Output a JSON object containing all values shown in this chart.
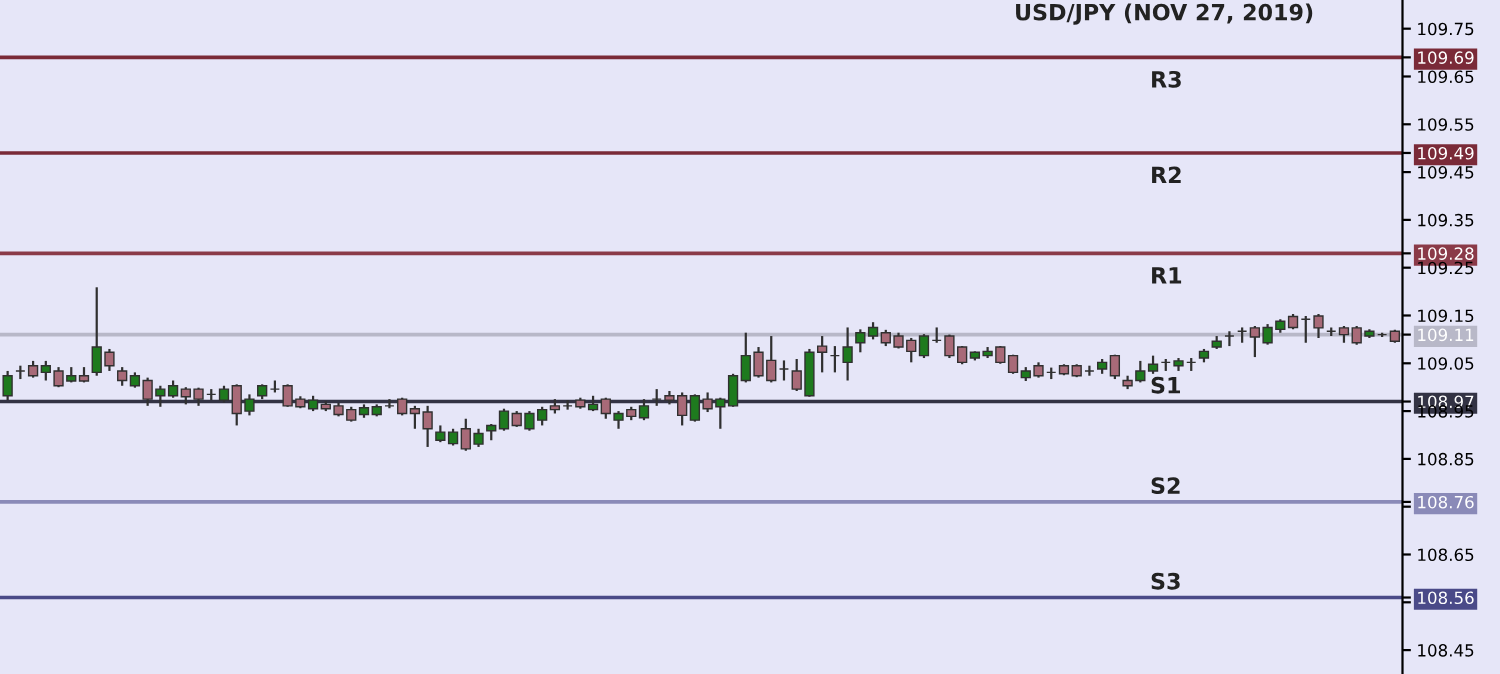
{
  "chart_data": {
    "type": "candlestick",
    "title": "USD/JPY (NOV 27, 2019)",
    "categories": [
      null,
      null,
      null,
      null,
      null,
      null,
      null,
      null,
      null,
      null,
      null,
      null,
      null,
      null,
      null,
      null,
      null,
      null,
      null,
      null,
      null,
      null,
      null,
      null,
      null,
      null,
      null,
      null,
      null,
      null,
      null,
      null,
      null,
      null,
      null,
      null,
      null,
      null,
      null,
      null,
      null,
      null,
      null,
      null,
      null,
      null,
      null,
      null,
      null,
      null,
      null,
      null,
      null,
      null,
      null,
      null,
      null,
      null,
      null,
      null,
      null,
      null,
      null,
      null,
      null,
      null,
      null,
      null,
      null,
      null,
      null,
      null,
      null,
      null,
      null,
      null,
      null,
      null,
      null,
      null,
      null,
      null,
      null,
      null,
      null,
      null,
      null,
      null,
      null,
      null,
      null,
      null,
      null,
      null,
      null,
      null,
      null,
      null,
      null,
      null,
      null,
      null,
      null,
      null,
      null,
      null,
      null,
      null,
      null,
      null
    ],
    "ohlc": [
      [
        108.982,
        109.034,
        108.973,
        109.024
      ],
      [
        109.034,
        109.045,
        109.017,
        109.034
      ],
      [
        109.045,
        109.055,
        109.02,
        109.024
      ],
      [
        109.031,
        109.055,
        109.014,
        109.045
      ],
      [
        109.034,
        109.042,
        109.0,
        109.003
      ],
      [
        109.013,
        109.042,
        109.01,
        109.024
      ],
      [
        109.024,
        109.042,
        109.01,
        109.013
      ],
      [
        109.031,
        109.209,
        109.024,
        109.084
      ],
      [
        109.073,
        109.08,
        109.034,
        109.045
      ],
      [
        109.034,
        109.042,
        109.003,
        109.014
      ],
      [
        109.003,
        109.031,
        108.999,
        109.024
      ],
      [
        109.014,
        109.02,
        108.961,
        108.975
      ],
      [
        108.982,
        109.003,
        108.959,
        108.996
      ],
      [
        108.982,
        109.014,
        108.978,
        109.003
      ],
      [
        108.996,
        109.0,
        108.964,
        108.98
      ],
      [
        108.996,
        108.999,
        108.961,
        108.975
      ],
      [
        108.985,
        108.996,
        108.973,
        108.985
      ],
      [
        108.973,
        109.003,
        108.968,
        108.996
      ],
      [
        109.003,
        109.006,
        108.92,
        108.945
      ],
      [
        108.95,
        108.985,
        108.941,
        108.975
      ],
      [
        108.982,
        109.006,
        108.975,
        109.003
      ],
      [
        108.996,
        109.014,
        108.989,
        108.996
      ],
      [
        109.003,
        109.006,
        108.959,
        108.961
      ],
      [
        108.975,
        108.981,
        108.956,
        108.959
      ],
      [
        108.955,
        108.982,
        108.95,
        108.973
      ],
      [
        108.964,
        108.971,
        108.95,
        108.955
      ],
      [
        108.961,
        108.967,
        108.939,
        108.943
      ],
      [
        108.953,
        108.959,
        108.928,
        108.931
      ],
      [
        108.943,
        108.964,
        108.936,
        108.957
      ],
      [
        108.943,
        108.964,
        108.939,
        108.959
      ],
      [
        108.961,
        108.975,
        108.956,
        108.961
      ],
      [
        108.975,
        108.978,
        108.941,
        108.945
      ],
      [
        108.955,
        108.961,
        108.913,
        108.945
      ],
      [
        108.948,
        108.961,
        108.875,
        108.913
      ],
      [
        108.889,
        108.92,
        108.885,
        108.906
      ],
      [
        108.882,
        108.913,
        108.878,
        108.906
      ],
      [
        108.913,
        108.934,
        108.867,
        108.871
      ],
      [
        108.881,
        108.913,
        108.875,
        108.903
      ],
      [
        108.909,
        108.923,
        108.889,
        108.92
      ],
      [
        108.913,
        108.955,
        108.909,
        108.95
      ],
      [
        108.945,
        108.95,
        108.917,
        108.92
      ],
      [
        108.913,
        108.95,
        108.909,
        108.945
      ],
      [
        108.931,
        108.959,
        108.92,
        108.953
      ],
      [
        108.961,
        108.975,
        108.945,
        108.953
      ],
      [
        108.961,
        108.973,
        108.953,
        108.961
      ],
      [
        108.973,
        108.978,
        108.955,
        108.959
      ],
      [
        108.953,
        108.982,
        108.95,
        108.964
      ],
      [
        108.975,
        108.978,
        108.934,
        108.945
      ],
      [
        108.931,
        108.95,
        108.913,
        108.945
      ],
      [
        108.953,
        108.959,
        108.931,
        108.939
      ],
      [
        108.936,
        108.975,
        108.931,
        108.961
      ],
      [
        108.975,
        108.996,
        108.961,
        108.975
      ],
      [
        108.982,
        108.992,
        108.964,
        108.973
      ],
      [
        108.982,
        108.989,
        108.92,
        108.941
      ],
      [
        108.931,
        108.985,
        108.928,
        108.982
      ],
      [
        108.975,
        108.989,
        108.948,
        108.955
      ],
      [
        108.959,
        108.978,
        108.913,
        108.975
      ],
      [
        108.961,
        109.028,
        108.959,
        109.024
      ],
      [
        109.014,
        109.114,
        109.01,
        109.066
      ],
      [
        109.073,
        109.084,
        109.02,
        109.024
      ],
      [
        109.056,
        109.107,
        109.01,
        109.014
      ],
      [
        109.038,
        109.056,
        109.014,
        109.038
      ],
      [
        109.034,
        109.059,
        108.992,
        108.996
      ],
      [
        108.982,
        109.08,
        108.98,
        109.073
      ],
      [
        109.086,
        109.107,
        109.031,
        109.073
      ],
      [
        109.066,
        109.086,
        109.031,
        109.066
      ],
      [
        109.052,
        109.125,
        109.014,
        109.084
      ],
      [
        109.093,
        109.121,
        109.073,
        109.114
      ],
      [
        109.107,
        109.136,
        109.1,
        109.125
      ],
      [
        109.114,
        109.12,
        109.086,
        109.093
      ],
      [
        109.107,
        109.114,
        109.081,
        109.084
      ],
      [
        109.098,
        109.103,
        109.052,
        109.075
      ],
      [
        109.066,
        109.111,
        109.061,
        109.107
      ],
      [
        109.098,
        109.125,
        109.093,
        109.098
      ],
      [
        109.107,
        109.11,
        109.061,
        109.066
      ],
      [
        109.084,
        109.086,
        109.048,
        109.052
      ],
      [
        109.061,
        109.075,
        109.056,
        109.073
      ],
      [
        109.066,
        109.084,
        109.061,
        109.075
      ],
      [
        109.084,
        109.086,
        109.049,
        109.052
      ],
      [
        109.066,
        109.068,
        109.028,
        109.031
      ],
      [
        109.02,
        109.042,
        109.013,
        109.034
      ],
      [
        109.045,
        109.052,
        109.02,
        109.024
      ],
      [
        109.031,
        109.041,
        109.017,
        109.031
      ],
      [
        109.045,
        109.048,
        109.025,
        109.028
      ],
      [
        109.045,
        109.048,
        109.021,
        109.024
      ],
      [
        109.034,
        109.045,
        109.024,
        109.034
      ],
      [
        109.038,
        109.059,
        109.028,
        109.052
      ],
      [
        109.066,
        109.068,
        109.017,
        109.024
      ],
      [
        109.014,
        109.024,
        108.996,
        109.003
      ],
      [
        109.014,
        109.055,
        109.01,
        109.034
      ],
      [
        109.034,
        109.066,
        109.028,
        109.048
      ],
      [
        109.052,
        109.059,
        109.034,
        109.052
      ],
      [
        109.045,
        109.061,
        109.034,
        109.055
      ],
      [
        109.052,
        109.061,
        109.034,
        109.052
      ],
      [
        109.061,
        109.08,
        109.052,
        109.075
      ],
      [
        109.084,
        109.107,
        109.08,
        109.096
      ],
      [
        109.107,
        109.117,
        109.086,
        109.107
      ],
      [
        109.117,
        109.125,
        109.093,
        109.117
      ],
      [
        109.124,
        109.128,
        109.063,
        109.105
      ],
      [
        109.093,
        109.132,
        109.089,
        109.125
      ],
      [
        109.121,
        109.142,
        109.114,
        109.138
      ],
      [
        109.148,
        109.153,
        109.121,
        109.125
      ],
      [
        109.142,
        109.149,
        109.093,
        109.142
      ],
      [
        109.149,
        109.153,
        109.103,
        109.124
      ],
      [
        109.117,
        109.125,
        109.107,
        109.117
      ],
      [
        109.124,
        109.128,
        109.093,
        109.11
      ],
      [
        109.124,
        109.128,
        109.089,
        109.093
      ],
      [
        109.107,
        109.121,
        109.103,
        109.117
      ],
      [
        109.11,
        109.114,
        109.105,
        109.11
      ],
      [
        109.117,
        109.12,
        109.093,
        109.096
      ]
    ],
    "ylim": [
      108.4,
      109.81
    ],
    "yticks": [
      109.75,
      {
        "value": 109.69,
        "label": "109.69"
      },
      109.65,
      109.55,
      {
        "value": 109.49,
        "label": "109.49"
      },
      109.45,
      109.35,
      {
        "value": 109.28,
        "label": "109.28"
      },
      109.25,
      109.15,
      {
        "value": 109.11,
        "label": "109.11"
      },
      109.05,
      {
        "value": 108.97,
        "label": "108.97"
      },
      108.95,
      108.85,
      {
        "value": 108.76,
        "label": "108.76"
      },
      {
        "value": 108.75,
        "label": null
      },
      108.65,
      {
        "value": 108.56,
        "label": "108.56"
      },
      {
        "value": 108.55,
        "label": null
      },
      108.45
    ],
    "ref_lines": [
      {
        "axis": "y",
        "value": 109.69,
        "label": "R3",
        "color": "#7a2a38"
      },
      {
        "axis": "y",
        "value": 109.49,
        "label": "R2",
        "color": "#7a2a38"
      },
      {
        "axis": "y",
        "value": 109.28,
        "label": "R1",
        "color": "#8a3a48"
      },
      {
        "axis": "y",
        "value": 109.11,
        "color": "#b8b8c8"
      },
      {
        "axis": "y",
        "value": 108.97,
        "label": "S1",
        "color": "#333344"
      },
      {
        "axis": "y",
        "value": 108.76,
        "label": "S2",
        "color": "#8a8ab8"
      },
      {
        "axis": "y",
        "value": 108.56,
        "label": "S3",
        "color": "#4a4a88"
      }
    ]
  }
}
